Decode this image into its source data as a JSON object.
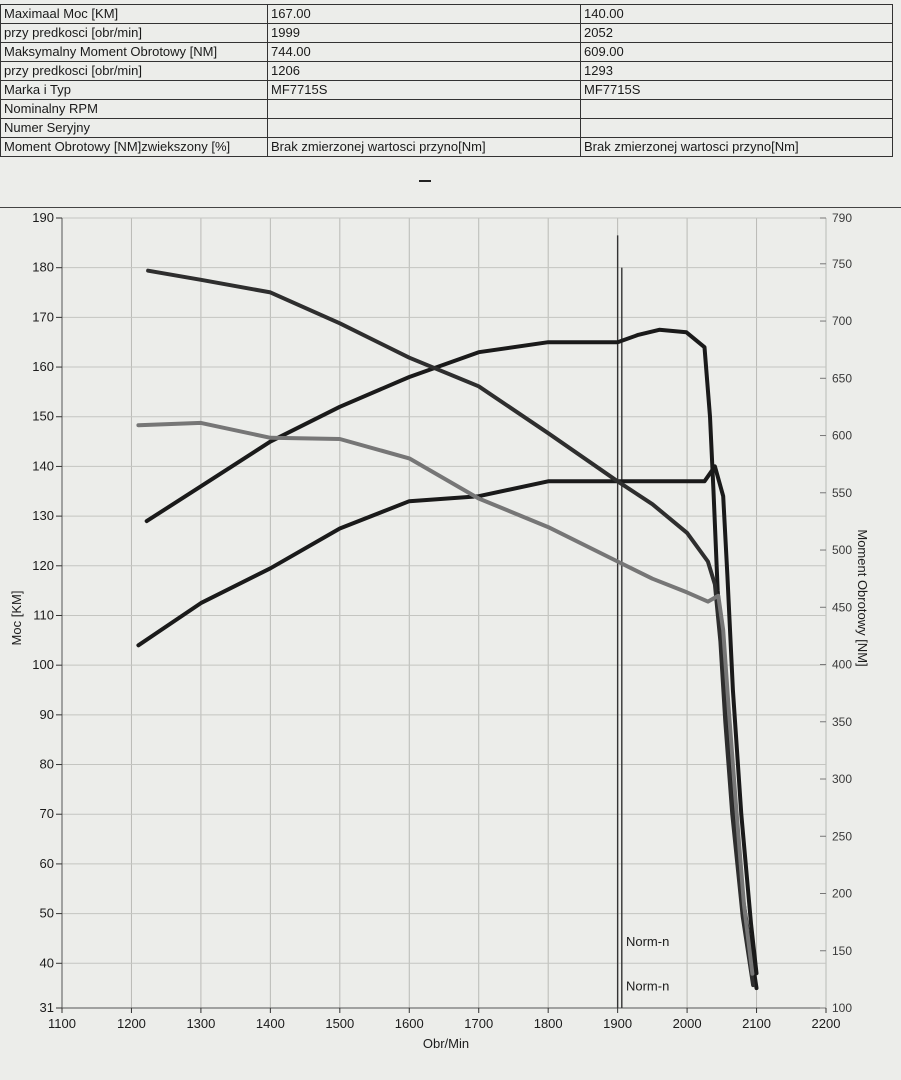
{
  "spec_table": {
    "rows": [
      {
        "label": "Maximaal Moc [KM]",
        "v1": "167.00",
        "v2": "140.00"
      },
      {
        "label": "przy predkosci [obr/min]",
        "v1": "1999",
        "v2": "2052"
      },
      {
        "label": "Maksymalny Moment Obrotowy [NM]",
        "v1": "744.00",
        "v2": "609.00"
      },
      {
        "label": "przy predkosci [obr/min]",
        "v1": "1206",
        "v2": "1293"
      },
      {
        "label": "Marka i Typ",
        "v1": "MF7715S",
        "v2": "MF7715S"
      },
      {
        "label": "Nominalny RPM",
        "v1": "",
        "v2": ""
      },
      {
        "label": "Numer Seryjny",
        "v1": "",
        "v2": ""
      },
      {
        "label": "Moment Obrotowy [NM]zwiekszony [%]",
        "v1": "Brak zmierzonej wartosci przyno[Nm]",
        "v2": "Brak zmierzonej wartosci przyno[Nm]"
      }
    ]
  },
  "chart_data": {
    "type": "line",
    "xlabel": "Obr/Min",
    "ylabel": "Moc [KM]",
    "y2label": "Moment Obrotowy [NM]",
    "xlim": [
      1100,
      2200
    ],
    "ylim": [
      31,
      190
    ],
    "y2lim": [
      100,
      790
    ],
    "x_ticks": [
      "1100",
      "1200",
      "1300",
      "1400",
      "1500",
      "1600",
      "1700",
      "1800",
      "1900",
      "2000",
      "2100",
      "2200"
    ],
    "y_ticks": [
      "190",
      "180",
      "170",
      "160",
      "150",
      "140",
      "130",
      "120",
      "110",
      "100",
      "90",
      "80",
      "70",
      "60",
      "50",
      "40",
      "31"
    ],
    "y2_ticks": [
      "790",
      "750",
      "700",
      "650",
      "600",
      "550",
      "500",
      "450",
      "400",
      "350",
      "300",
      "250",
      "200",
      "150",
      "100"
    ],
    "grid": true,
    "series": [
      {
        "axis": "y",
        "color": "#1a1a1a",
        "x": [
          1222,
          1300,
          1400,
          1500,
          1600,
          1700,
          1800,
          1900,
          1930,
          1960,
          1999,
          2025,
          2033,
          2038,
          2044,
          2058,
          2075,
          2100
        ],
        "y": [
          129,
          136,
          145,
          152,
          158,
          163,
          165,
          165,
          166.5,
          167.5,
          167,
          164,
          150,
          135,
          115,
          85,
          58,
          35
        ]
      },
      {
        "axis": "y",
        "color": "#1a1a1a",
        "x": [
          1210,
          1300,
          1400,
          1500,
          1600,
          1700,
          1800,
          1900,
          1950,
          2000,
          2025,
          2040,
          2052,
          2058,
          2066,
          2078,
          2092,
          2100
        ],
        "y": [
          104,
          112.5,
          119.5,
          127.5,
          133,
          134,
          137,
          137,
          137,
          137,
          137,
          140,
          134,
          118,
          95,
          70,
          48,
          38
        ]
      },
      {
        "axis": "y2",
        "color": "#2e2e2e",
        "x": [
          1224,
          1300,
          1400,
          1500,
          1600,
          1700,
          1800,
          1900,
          1950,
          2000,
          2030,
          2040,
          2048,
          2055,
          2065,
          2080,
          2095
        ],
        "y": [
          744,
          736,
          725,
          698,
          668,
          643,
          602,
          560,
          540,
          515,
          490,
          470,
          420,
          350,
          270,
          180,
          120
        ]
      },
      {
        "axis": "y2",
        "color": "#767676",
        "x": [
          1210,
          1300,
          1400,
          1500,
          1600,
          1700,
          1800,
          1900,
          1950,
          2000,
          2030,
          2045,
          2052,
          2060,
          2070,
          2082,
          2094
        ],
        "y": [
          609,
          611,
          598,
          597,
          580,
          545,
          520,
          490,
          475,
          463,
          455,
          460,
          430,
          360,
          280,
          190,
          130
        ]
      }
    ],
    "vlines": [
      {
        "x": 1900,
        "ymin": 31,
        "ymax": 186.5,
        "color": "#333"
      },
      {
        "x": 1906,
        "ymin": 31,
        "ymax": 180,
        "color": "#333"
      }
    ],
    "annotations": [
      {
        "text": "Norm-n",
        "x": 1912,
        "y": 43.5
      },
      {
        "text": "Norm-n",
        "x": 1912,
        "y": 34.5
      }
    ]
  }
}
